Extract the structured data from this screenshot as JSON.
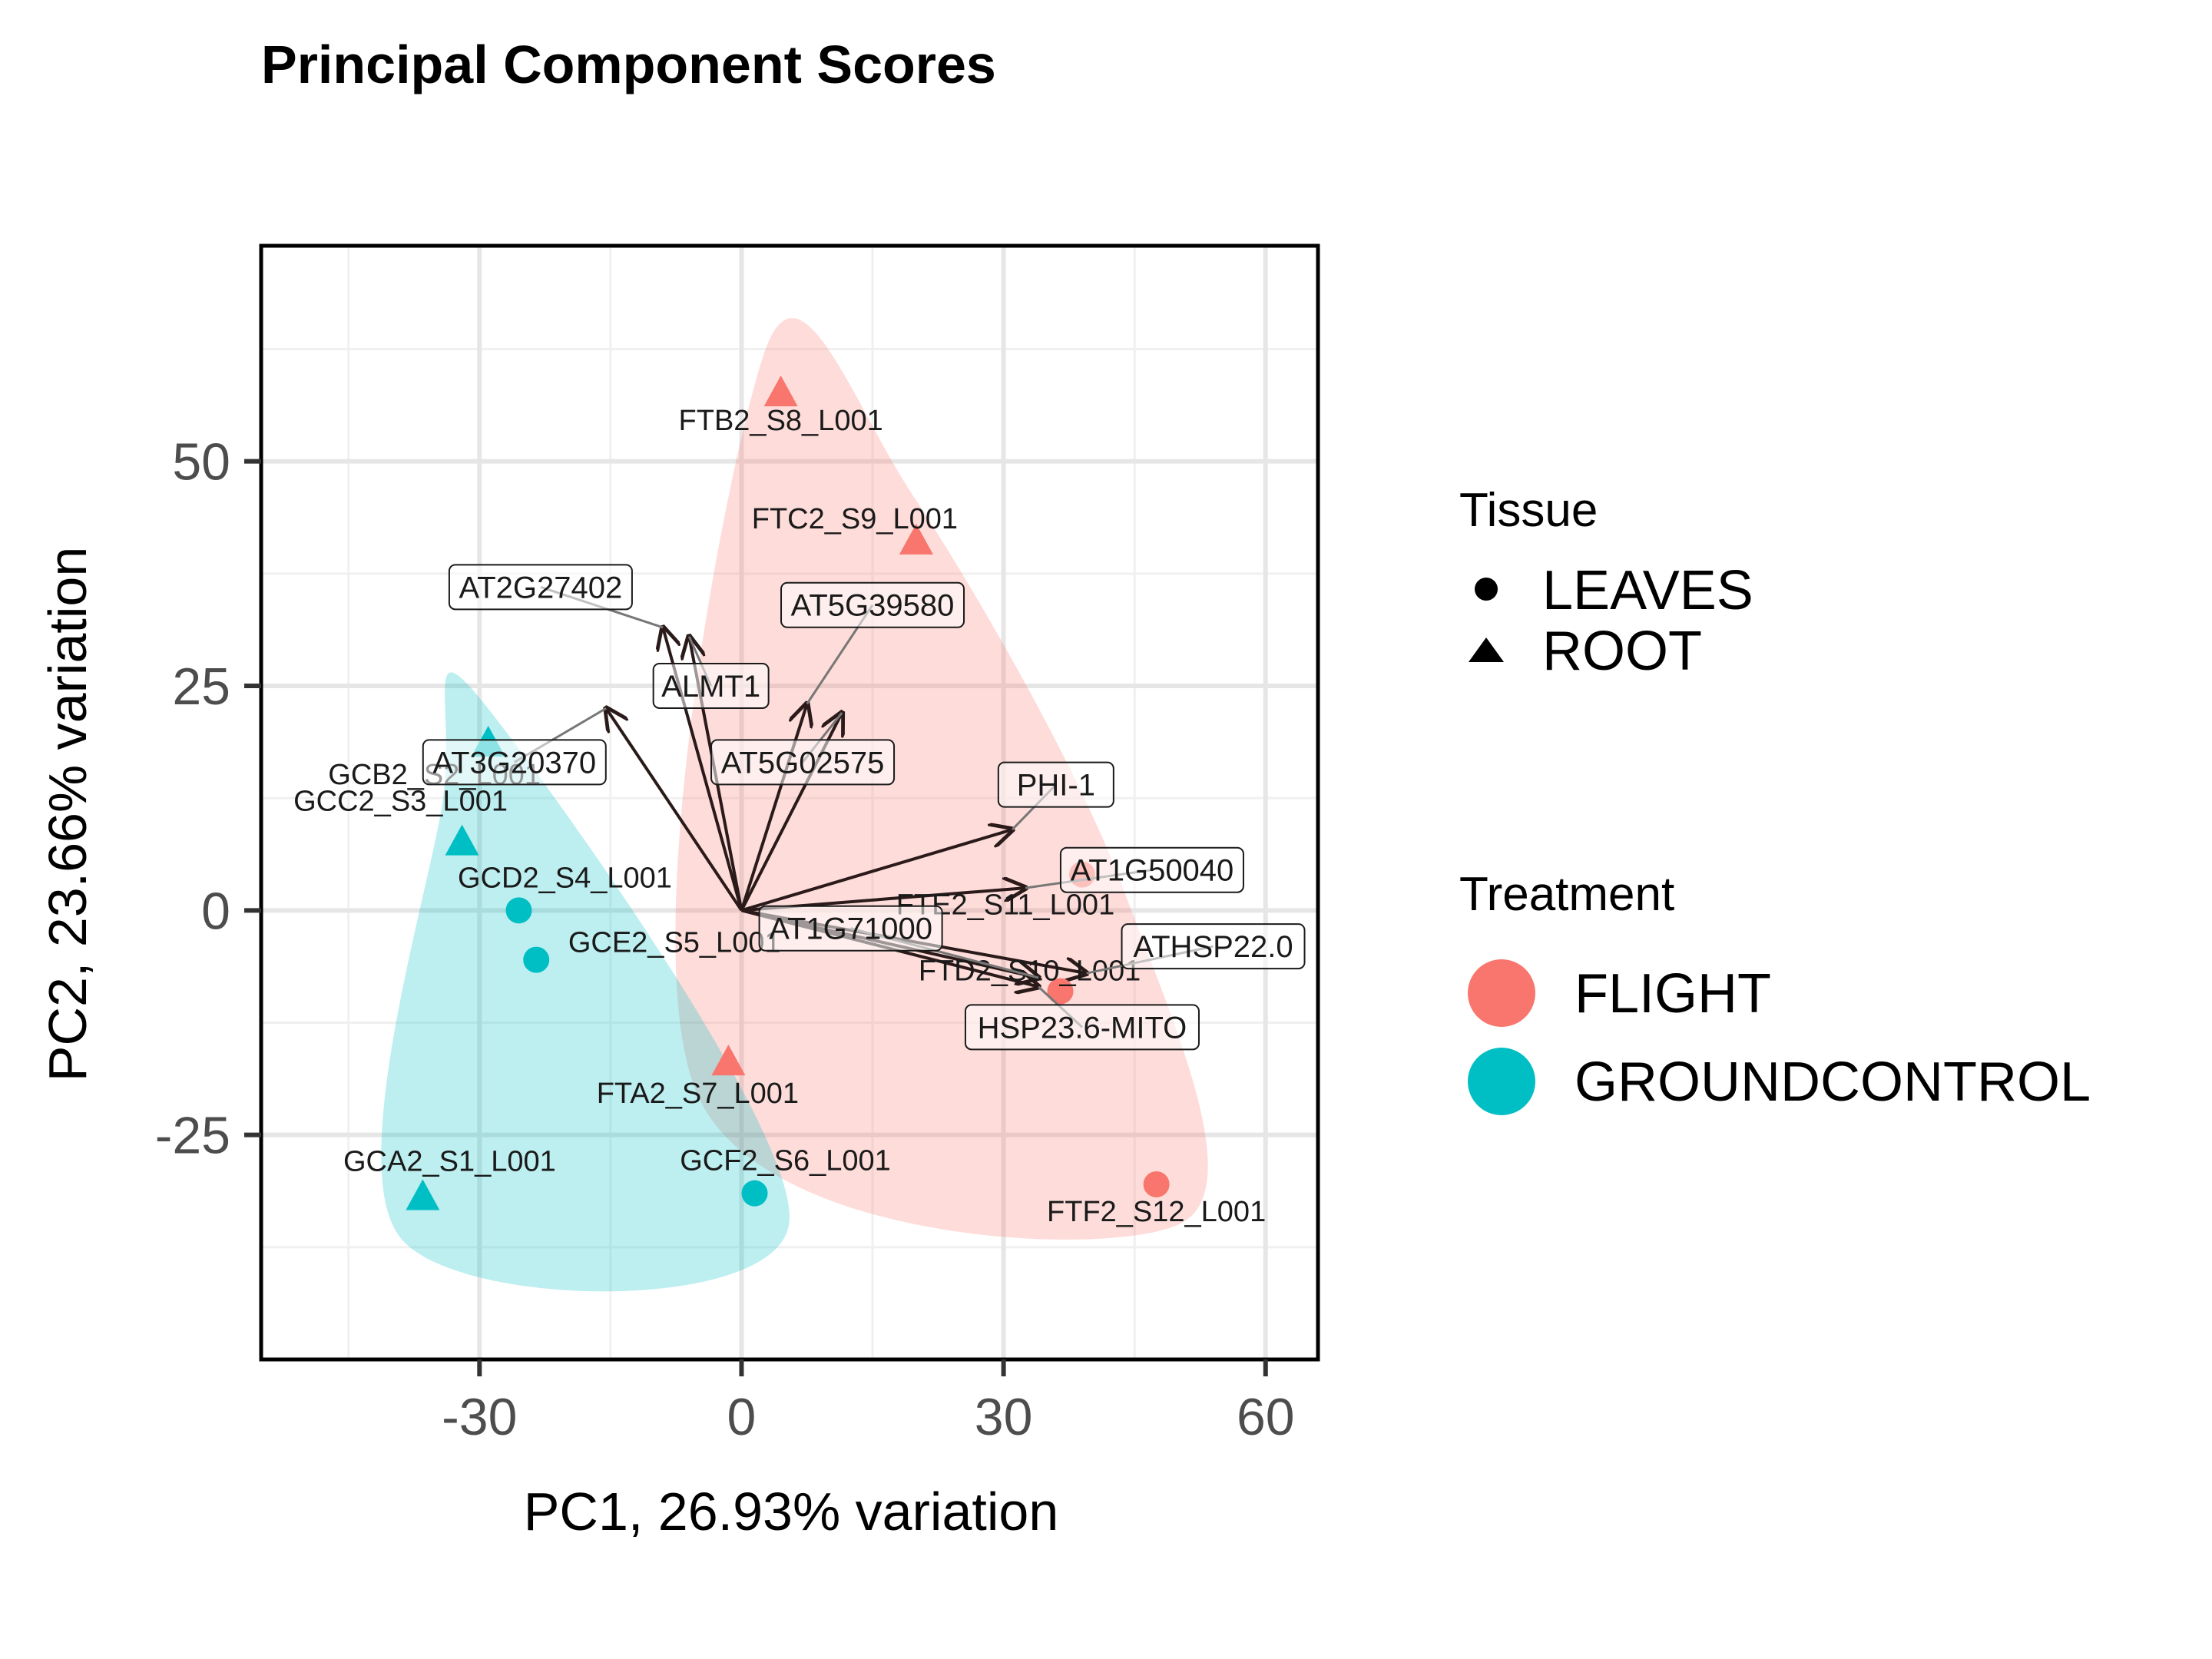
{
  "chart_data": {
    "type": "scatter",
    "title": "Principal Component Scores",
    "xlabel": "PC1, 26.93% variation",
    "ylabel": "PC2, 23.66% variation",
    "xlim": [
      -55,
      66
    ],
    "ylim": [
      -50,
      74
    ],
    "x_ticks": [
      -30,
      0,
      30,
      60
    ],
    "x_tick_labels": [
      "-30",
      "0",
      "30",
      "60"
    ],
    "y_ticks": [
      -25,
      0,
      25,
      50
    ],
    "y_tick_labels": [
      "-25",
      "0",
      "25",
      "50"
    ],
    "grid": true,
    "legends": {
      "tissue": {
        "title": "Tissue",
        "entries": [
          {
            "label": "LEAVES",
            "shape": "circle"
          },
          {
            "label": "ROOT",
            "shape": "triangle"
          }
        ]
      },
      "treatment": {
        "title": "Treatment",
        "entries": [
          {
            "label": "FLIGHT",
            "color": "#F8766D"
          },
          {
            "label": "GROUNDCONTROL",
            "color": "#00BFC4"
          }
        ]
      }
    },
    "hull_colors": {
      "FLIGHT": "#F8766D",
      "GROUNDCONTROL": "#00BFC4"
    },
    "points": [
      {
        "label": "FTB2_S8_L001",
        "x": 4.5,
        "y": 57.5,
        "tissue": "ROOT",
        "treatment": "FLIGHT"
      },
      {
        "label": "FTC2_S9_L001",
        "x": 20,
        "y": 41,
        "tissue": "ROOT",
        "treatment": "FLIGHT"
      },
      {
        "label": "FTA2_S7_L001",
        "x": -1.5,
        "y": -17,
        "tissue": "ROOT",
        "treatment": "FLIGHT"
      },
      {
        "label": "FTE2_S11_L001",
        "x": 39,
        "y": 4,
        "tissue": "LEAVES",
        "treatment": "FLIGHT"
      },
      {
        "label": "FTD2_S10_L001",
        "x": 36.5,
        "y": -9,
        "tissue": "LEAVES",
        "treatment": "FLIGHT"
      },
      {
        "label": "FTF2_S12_L001",
        "x": 47.5,
        "y": -30.5,
        "tissue": "LEAVES",
        "treatment": "FLIGHT"
      },
      {
        "label": "GCB2_S2_L001",
        "x": -29,
        "y": 18.5,
        "tissue": "ROOT",
        "treatment": "GROUNDCONTROL"
      },
      {
        "label": "GCC2_S3_L001",
        "x": -32,
        "y": 7.5,
        "tissue": "ROOT",
        "treatment": "GROUNDCONTROL"
      },
      {
        "label": "GCD2_S4_L001",
        "x": -25.5,
        "y": 0,
        "tissue": "LEAVES",
        "treatment": "GROUNDCONTROL"
      },
      {
        "label": "GCE2_S5_L001",
        "x": -23.5,
        "y": -5.5,
        "tissue": "LEAVES",
        "treatment": "GROUNDCONTROL"
      },
      {
        "label": "GCA2_S1_L001",
        "x": -36.5,
        "y": -32,
        "tissue": "ROOT",
        "treatment": "GROUNDCONTROL"
      },
      {
        "label": "GCF2_S6_L001",
        "x": 1.5,
        "y": -31.5,
        "tissue": "LEAVES",
        "treatment": "GROUNDCONTROL"
      }
    ],
    "loadings": [
      {
        "label": "AT2G27402",
        "x": -9,
        "y": 31.5
      },
      {
        "label": "ALMT1",
        "x": -6,
        "y": 30.5
      },
      {
        "label": "AT5G39580",
        "x": 7.5,
        "y": 23
      },
      {
        "label": "AT5G02575",
        "x": 11.5,
        "y": 22
      },
      {
        "label": "AT3G20370",
        "x": -15.5,
        "y": 22.5
      },
      {
        "label": "PHI-1",
        "x": 31,
        "y": 9
      },
      {
        "label": "AT1G50040",
        "x": 32.5,
        "y": 2.5
      },
      {
        "label": "AT1G71000",
        "x": 34,
        "y": -7.5
      },
      {
        "label": "ATHSP22.0",
        "x": 39.5,
        "y": -7
      },
      {
        "label": "HSP23.6-MITO",
        "x": 34,
        "y": -8.5
      }
    ]
  }
}
